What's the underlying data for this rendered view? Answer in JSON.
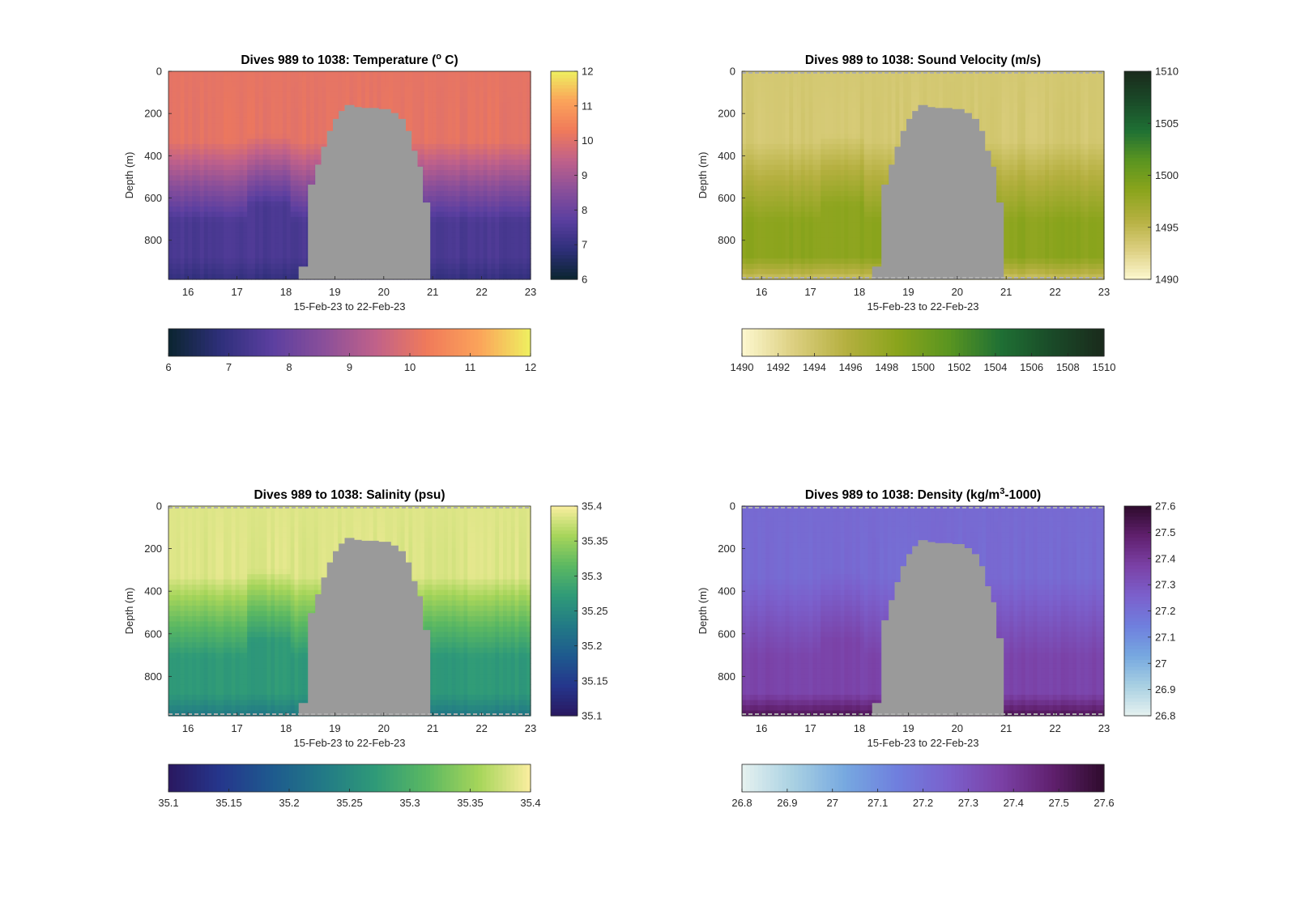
{
  "figure": {
    "subtitle_common": "Dives 989 to 1038"
  },
  "chart_data": [
    {
      "type": "heatmap",
      "title_prefix": "Dives 989 to 1038: Temperature (",
      "title_sup": "o",
      "title_suffix": " C)",
      "xlabel": "15-Feb-23 to 22-Feb-23",
      "ylabel": "Depth (m)",
      "xlim": [
        15.6,
        23.0
      ],
      "ylim": [
        0,
        985
      ],
      "xticks": [
        "16",
        "17",
        "18",
        "19",
        "20",
        "21",
        "22",
        "23"
      ],
      "yticks": [
        "0",
        "200",
        "400",
        "600",
        "800"
      ],
      "variable": "temperature",
      "units": "°C",
      "clim": [
        6,
        12
      ],
      "colorbar_ticks": [
        "6",
        "7",
        "8",
        "9",
        "10",
        "11",
        "12"
      ],
      "horizontal_colorbar_ticks": [
        "6",
        "7",
        "8",
        "9",
        "10",
        "11",
        "12"
      ],
      "colormap": [
        "#0b2530",
        "#2e2f7a",
        "#5b3fa0",
        "#8a4f9a",
        "#c0618a",
        "#f07a5a",
        "#fba35a",
        "#eef060"
      ],
      "gap_color": "#9a9a9a",
      "gap_top_depth": 160,
      "surface_value": 10.1,
      "deep_value": 7.4,
      "bottom_value": 7.0,
      "dashed_surface_line": false,
      "notes_visible": "Upper layer near 10 °C; colder water (7–8 °C) at depth before 18 Feb and after 21 Feb"
    },
    {
      "type": "heatmap",
      "title_prefix": "Dives 989 to 1038: Sound Velocity (m/s)",
      "title_sup": "",
      "title_suffix": "",
      "xlabel": "15-Feb-23 to 22-Feb-23",
      "ylabel": "Depth (m)",
      "xlim": [
        15.6,
        23.0
      ],
      "ylim": [
        0,
        985
      ],
      "xticks": [
        "16",
        "17",
        "18",
        "19",
        "20",
        "21",
        "22",
        "23"
      ],
      "yticks": [
        "0",
        "200",
        "400",
        "600",
        "800"
      ],
      "variable": "sound_velocity",
      "units": "m/s",
      "clim": [
        1490,
        1510
      ],
      "colorbar_ticks": [
        "1490",
        "1495",
        "1500",
        "1505",
        "1510"
      ],
      "horizontal_colorbar_ticks": [
        "1490",
        "1492",
        "1494",
        "1496",
        "1498",
        "1500",
        "1502",
        "1504",
        "1506",
        "1508",
        "1510"
      ],
      "colormap": [
        "#fdf8d0",
        "#dccf80",
        "#b5b040",
        "#8aa41c",
        "#5a9520",
        "#1f7034",
        "#1a4a28",
        "#1a2a1c"
      ],
      "gap_color": "#9a9a9a",
      "gap_top_depth": 160,
      "surface_value": 1493.5,
      "deep_value": 1498.5,
      "bottom_value": 1494.5,
      "dashed_surface_line": true,
      "notes_visible": "About 1493 m/s near surface increasing to about 1499 m/s at 500–800 m"
    },
    {
      "type": "heatmap",
      "title_prefix": "Dives 989 to 1038: Salinity (psu)",
      "title_sup": "",
      "title_suffix": "",
      "xlabel": "15-Feb-23 to 22-Feb-23",
      "ylabel": "Depth (m)",
      "xlim": [
        15.6,
        23.0
      ],
      "ylim": [
        0,
        985
      ],
      "xticks": [
        "16",
        "17",
        "18",
        "19",
        "20",
        "21",
        "22",
        "23"
      ],
      "yticks": [
        "0",
        "200",
        "400",
        "600",
        "800"
      ],
      "variable": "salinity",
      "units": "psu",
      "clim": [
        35.1,
        35.4
      ],
      "colorbar_ticks": [
        "35.1",
        "35.15",
        "35.2",
        "35.25",
        "35.3",
        "35.35",
        "35.4"
      ],
      "horizontal_colorbar_ticks": [
        "35.1",
        "35.15",
        "35.2",
        "35.25",
        "35.3",
        "35.35",
        "35.4"
      ],
      "colormap": [
        "#2a1860",
        "#25368c",
        "#1e5a8e",
        "#227a86",
        "#2f9a78",
        "#5bb862",
        "#a6d55a",
        "#fbeea0"
      ],
      "gap_color": "#9a9a9a",
      "gap_top_depth": 150,
      "surface_value": 35.385,
      "deep_value": 35.27,
      "bottom_value": 35.23,
      "dashed_surface_line": true,
      "notes_visible": "Near 35.4 psu at surface; about 35.25–35.3 psu at depth outside the gap"
    },
    {
      "type": "heatmap",
      "title_prefix": "Dives 989 to 1038: Density (kg/m",
      "title_sup": "3",
      "title_suffix": "-1000)",
      "xlabel": "15-Feb-23 to 22-Feb-23",
      "ylabel": "Depth (m)",
      "xlim": [
        15.6,
        23.0
      ],
      "ylim": [
        0,
        985
      ],
      "xticks": [
        "16",
        "17",
        "18",
        "19",
        "20",
        "21",
        "22",
        "23"
      ],
      "yticks": [
        "0",
        "200",
        "400",
        "600",
        "800"
      ],
      "variable": "density",
      "units": "kg/m3-1000",
      "clim": [
        26.8,
        27.6
      ],
      "colorbar_ticks": [
        "26.8",
        "26.9",
        "27",
        "27.1",
        "27.2",
        "27.3",
        "27.4",
        "27.5",
        "27.6"
      ],
      "horizontal_colorbar_ticks": [
        "26.8",
        "26.9",
        "27",
        "27.1",
        "27.2",
        "27.3",
        "27.4",
        "27.5",
        "27.6"
      ],
      "colormap": [
        "#e6f2f0",
        "#a8d0e2",
        "#76a8e0",
        "#6f7fde",
        "#7b60cc",
        "#7b41a6",
        "#60206e",
        "#2e0b2c"
      ],
      "gap_color": "#9a9a9a",
      "gap_top_depth": 160,
      "surface_value": 27.22,
      "deep_value": 27.36,
      "bottom_value": 27.52,
      "dashed_surface_line": true,
      "notes_visible": "About 27.2 in upper layer increasing to about 27.5 near 950 m"
    }
  ]
}
